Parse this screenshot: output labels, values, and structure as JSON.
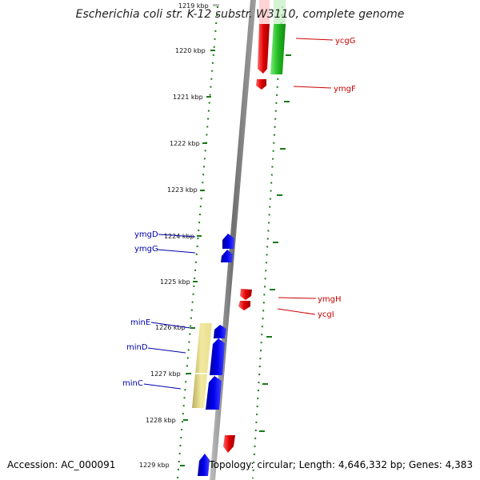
{
  "title": "Escherichia coli str. K-12 substr. W3110, complete genome",
  "footer": {
    "accession": "Accession: AC_000091",
    "summary": "Topology: circular; Length: 4,646,332 bp; Genes: 4,383"
  },
  "ruler": {
    "unit": "kbp",
    "ticks": [
      {
        "value": 1219,
        "label": "1219 kbp"
      },
      {
        "value": 1220,
        "label": "1220 kbp"
      },
      {
        "value": 1221,
        "label": "1221 kbp"
      },
      {
        "value": 1222,
        "label": "1222 kbp"
      },
      {
        "value": 1223,
        "label": "1223 kbp"
      },
      {
        "value": 1224,
        "label": "1224 kbp"
      },
      {
        "value": 1225,
        "label": "1225 kbp"
      },
      {
        "value": 1226,
        "label": "1226 kbp"
      },
      {
        "value": 1227,
        "label": "1227 kbp"
      },
      {
        "value": 1228,
        "label": "1228 kbp"
      },
      {
        "value": 1229,
        "label": "1229 kbp"
      }
    ]
  },
  "colors": {
    "forward_gene": "#e00000",
    "reverse_gene": "#0000dd",
    "green_feature": "#22bb22",
    "yellow_feature": "#e8df90",
    "backbone": "#808080",
    "tick_green": "#1a7a1a",
    "right_label": "#cc0000",
    "left_label": "#0000aa"
  },
  "genes": {
    "right": [
      {
        "name": "ycgG"
      },
      {
        "name": "ymgF"
      },
      {
        "name": "ymgH"
      },
      {
        "name": "ycgI"
      }
    ],
    "left": [
      {
        "name": "ymgD"
      },
      {
        "name": "ymgG"
      },
      {
        "name": "minE"
      },
      {
        "name": "minD"
      },
      {
        "name": "minC"
      }
    ]
  }
}
